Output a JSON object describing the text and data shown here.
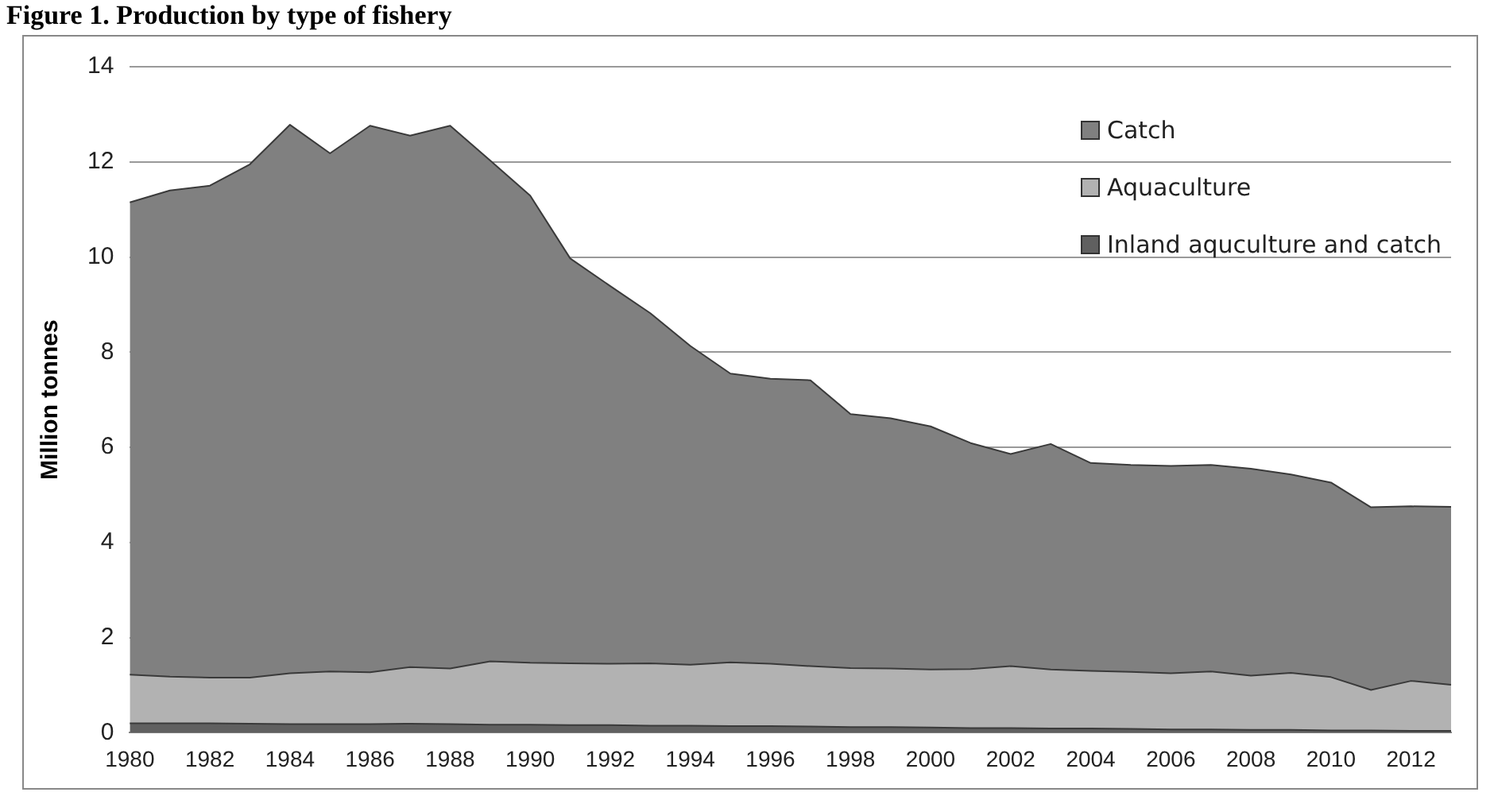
{
  "chart_data": {
    "type": "area",
    "title": "Figure 1. Production by type of fishery",
    "ylabel": "Million tonnes",
    "categories": [
      "1980",
      null,
      "1982",
      null,
      "1984",
      null,
      "1986",
      null,
      "1988",
      null,
      "1990",
      null,
      "1992",
      null,
      "1994",
      null,
      "1996",
      null,
      "1998",
      null,
      "2000",
      null,
      "2002",
      null,
      "2004",
      null,
      "2006",
      null,
      "2008",
      null,
      "2010",
      null,
      "2012",
      null
    ],
    "stacked": true,
    "series": [
      {
        "name": "Inland aquculture and catch",
        "color": "#606060",
        "values": [
          0.2,
          0.2,
          0.2,
          0.19,
          0.18,
          0.18,
          0.18,
          0.19,
          0.18,
          0.17,
          0.17,
          0.16,
          0.16,
          0.15,
          0.15,
          0.14,
          0.14,
          0.13,
          0.12,
          0.12,
          0.11,
          0.1,
          0.1,
          0.09,
          0.09,
          0.08,
          0.07,
          0.07,
          0.06,
          0.06,
          0.05,
          0.05,
          0.04,
          0.04
        ]
      },
      {
        "name": "Aquaculture",
        "color": "#b2b2b2",
        "values": [
          1.02,
          0.98,
          0.96,
          0.97,
          1.07,
          1.11,
          1.09,
          1.19,
          1.17,
          1.33,
          1.3,
          1.3,
          1.29,
          1.31,
          1.28,
          1.34,
          1.31,
          1.27,
          1.24,
          1.23,
          1.22,
          1.24,
          1.3,
          1.24,
          1.21,
          1.2,
          1.18,
          1.22,
          1.14,
          1.2,
          1.12,
          0.85,
          1.05,
          0.97
        ]
      },
      {
        "name": "Catch",
        "color": "#808080",
        "values": [
          9.93,
          10.22,
          10.34,
          10.79,
          11.53,
          10.89,
          11.49,
          11.17,
          11.41,
          10.53,
          9.82,
          8.51,
          7.94,
          7.36,
          6.7,
          6.07,
          5.99,
          6.01,
          5.34,
          5.26,
          5.11,
          4.75,
          4.46,
          4.74,
          4.37,
          4.35,
          4.36,
          4.34,
          4.35,
          4.17,
          4.09,
          3.84,
          3.67,
          3.74
        ]
      }
    ],
    "ylim": [
      0,
      14
    ],
    "yticks": [
      0,
      2,
      4,
      6,
      8,
      10,
      12,
      14
    ],
    "grid": "y",
    "legend": "top right"
  }
}
